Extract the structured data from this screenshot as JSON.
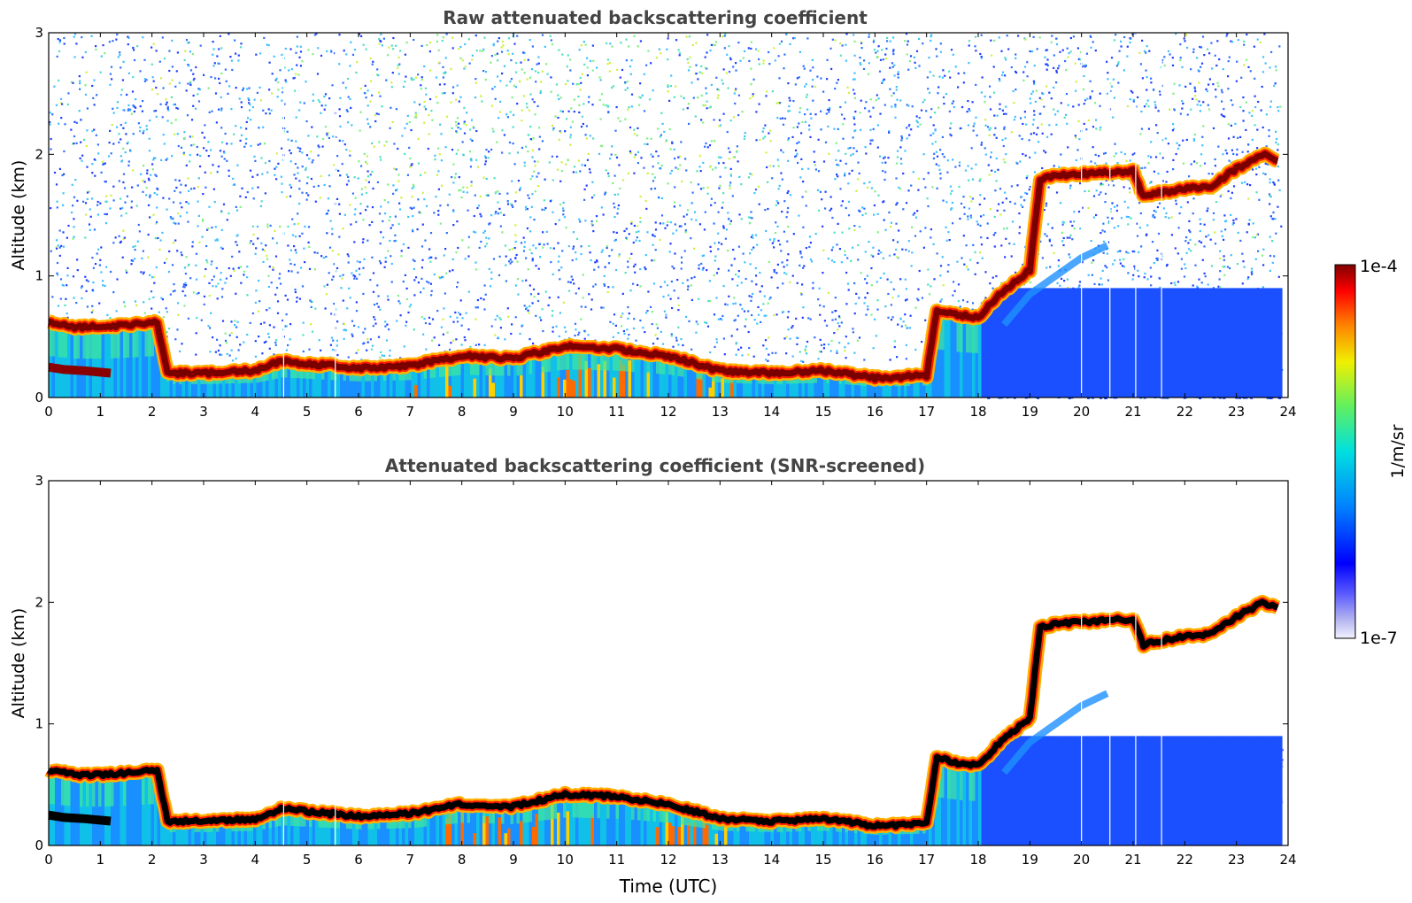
{
  "chart_data": [
    {
      "type": "heatmap",
      "title": "Raw attenuated backscattering coefficient",
      "xlabel": "",
      "ylabel": "Altitude (km)",
      "xlim": [
        0,
        24
      ],
      "ylim": [
        0,
        3
      ],
      "x_ticks": [
        "0",
        "1",
        "2",
        "3",
        "4",
        "5",
        "6",
        "7",
        "8",
        "9",
        "10",
        "11",
        "12",
        "13",
        "14",
        "15",
        "16",
        "17",
        "18",
        "19",
        "20",
        "21",
        "22",
        "23",
        "24"
      ],
      "y_ticks": [
        "0",
        "1",
        "2",
        "3"
      ],
      "screened": false,
      "layer_altitude_km": {
        "hours": [
          0,
          0.5,
          1,
          1.6,
          2.0,
          2.1,
          2.3,
          3,
          4,
          4.5,
          5,
          6,
          7,
          8,
          9,
          10,
          11,
          12,
          13,
          14,
          15,
          16,
          17,
          17.2,
          17.6,
          18,
          18.5,
          19,
          19.2,
          19.5,
          20,
          20.5,
          21,
          21.2,
          21.5,
          22,
          22.5,
          23,
          23.5,
          23.8
        ],
        "km": [
          0.62,
          0.58,
          0.58,
          0.6,
          0.62,
          0.62,
          0.2,
          0.2,
          0.22,
          0.3,
          0.28,
          0.24,
          0.26,
          0.34,
          0.32,
          0.42,
          0.4,
          0.34,
          0.22,
          0.2,
          0.22,
          0.16,
          0.18,
          0.72,
          0.68,
          0.66,
          0.88,
          1.05,
          1.8,
          1.82,
          1.84,
          1.85,
          1.86,
          1.65,
          1.68,
          1.72,
          1.74,
          1.88,
          2.0,
          1.95
        ]
      }
    },
    {
      "type": "heatmap",
      "title": "Attenuated backscattering coefficient (SNR-screened)",
      "xlabel": "Time (UTC)",
      "ylabel": "Altitude (km)",
      "xlim": [
        0,
        24
      ],
      "ylim": [
        0,
        3
      ],
      "x_ticks": [
        "0",
        "1",
        "2",
        "3",
        "4",
        "5",
        "6",
        "7",
        "8",
        "9",
        "10",
        "11",
        "12",
        "13",
        "14",
        "15",
        "16",
        "17",
        "18",
        "19",
        "20",
        "21",
        "22",
        "23",
        "24"
      ],
      "y_ticks": [
        "0",
        "1",
        "2",
        "3"
      ],
      "screened": true,
      "layer_altitude_km": {
        "hours": [
          0,
          0.5,
          1,
          1.6,
          2.0,
          2.1,
          2.3,
          3,
          4,
          4.5,
          5,
          6,
          7,
          8,
          9,
          10,
          11,
          12,
          13,
          14,
          15,
          16,
          17,
          17.2,
          17.6,
          18,
          18.5,
          19,
          19.2,
          19.5,
          20,
          20.5,
          21,
          21.2,
          21.5,
          22,
          22.5,
          23,
          23.5,
          23.8
        ],
        "km": [
          0.62,
          0.58,
          0.58,
          0.6,
          0.62,
          0.62,
          0.2,
          0.2,
          0.22,
          0.3,
          0.28,
          0.24,
          0.26,
          0.34,
          0.32,
          0.42,
          0.4,
          0.34,
          0.22,
          0.2,
          0.22,
          0.16,
          0.18,
          0.72,
          0.68,
          0.66,
          0.88,
          1.05,
          1.8,
          1.82,
          1.84,
          1.85,
          1.86,
          1.65,
          1.68,
          1.72,
          1.74,
          1.88,
          2.0,
          1.95
        ]
      }
    }
  ],
  "colorbar": {
    "min_label": "1e-7",
    "max_label": "1e-4",
    "unit_label": "1/m/sr",
    "scale": "log",
    "colormap": "jet"
  },
  "colors": {
    "layer_core": "#7a0000",
    "screened_core": "#000000",
    "title": "#444444"
  }
}
